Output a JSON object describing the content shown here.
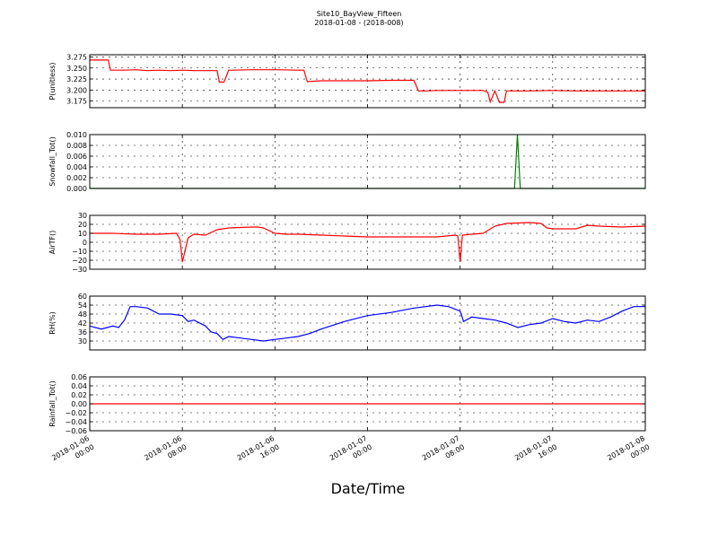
{
  "chart_data": {
    "type": "line",
    "title": "Site10_BayView_Fifteen",
    "subtitle": "2018-01-08 - (2018-008)",
    "xlabel": "Date/Time",
    "x_ticks": [
      {
        "value": 0,
        "label_line1": "2018-01-06",
        "label_line2": "00:00"
      },
      {
        "value": 8,
        "label_line1": "2018-01-06",
        "label_line2": "08:00"
      },
      {
        "value": 16,
        "label_line1": "2018-01-06",
        "label_line2": "16:00"
      },
      {
        "value": 24,
        "label_line1": "2018-01-07",
        "label_line2": "00:00"
      },
      {
        "value": 32,
        "label_line1": "2018-01-07",
        "label_line2": "08:00"
      },
      {
        "value": 40,
        "label_line1": "2018-01-07",
        "label_line2": "16:00"
      },
      {
        "value": 48,
        "label_line1": "2018-01-08",
        "label_line2": "00:00"
      }
    ],
    "xlim": [
      0,
      48
    ],
    "grid": true,
    "panels": [
      {
        "ylabel": "P(unitless)",
        "color": "#ff0000",
        "ylim": [
          3.16,
          3.28
        ],
        "yticks": [
          3.175,
          3.2,
          3.225,
          3.25,
          3.275
        ],
        "tick_labels": [
          "3.175",
          "3.200",
          "3.225",
          "3.250",
          "3.275"
        ],
        "x": [
          0,
          1.6,
          1.8,
          3,
          4,
          5,
          6,
          7,
          8,
          9,
          10,
          11,
          11.2,
          11.6,
          12,
          12.3,
          14,
          16,
          18,
          18.5,
          18.8,
          20,
          22,
          24,
          26,
          28,
          28.4,
          29,
          30,
          32,
          34,
          34.4,
          34.6,
          35,
          35.4,
          35.8,
          36,
          38,
          40,
          42,
          44,
          46,
          48
        ],
        "values": [
          3.268,
          3.268,
          3.245,
          3.245,
          3.246,
          3.244,
          3.245,
          3.244,
          3.245,
          3.244,
          3.244,
          3.244,
          3.218,
          3.218,
          3.245,
          3.245,
          3.246,
          3.246,
          3.245,
          3.245,
          3.219,
          3.221,
          3.221,
          3.221,
          3.222,
          3.222,
          3.198,
          3.198,
          3.199,
          3.199,
          3.199,
          3.195,
          3.173,
          3.198,
          3.172,
          3.172,
          3.198,
          3.198,
          3.199,
          3.198,
          3.198,
          3.198,
          3.198
        ]
      },
      {
        "ylabel": "Snowfall_Tot()",
        "color": "#008000",
        "ylim": [
          0,
          0.01
        ],
        "yticks": [
          0,
          0.002,
          0.004,
          0.006,
          0.008,
          0.01
        ],
        "tick_labels": [
          "0.000",
          "0.002",
          "0.004",
          "0.006",
          "0.008",
          "0.010"
        ],
        "x": [
          0,
          36.7,
          36.95,
          37.2,
          48
        ],
        "values": [
          0,
          0,
          0.01,
          0,
          0
        ]
      },
      {
        "ylabel": "AirTF()",
        "color": "#ff0000",
        "ylim": [
          -30,
          30
        ],
        "yticks": [
          -30,
          -20,
          -10,
          0,
          10,
          20,
          30
        ],
        "tick_labels": [
          "−30",
          "−20",
          "−10",
          "0",
          "10",
          "20",
          "30"
        ],
        "x": [
          0,
          2,
          4,
          6,
          7.5,
          7.8,
          8.0,
          8.5,
          9,
          10,
          11,
          12,
          14,
          14.5,
          15,
          16,
          17,
          18,
          20,
          22,
          24,
          26,
          28,
          30,
          31.6,
          31.8,
          32.0,
          32.2,
          33,
          34,
          35,
          36,
          38,
          39,
          39.5,
          40,
          42,
          43,
          44,
          46,
          48
        ],
        "values": [
          10,
          10,
          9,
          9,
          10,
          3,
          -22,
          5,
          9,
          8,
          14,
          16,
          17,
          17,
          16,
          10,
          9,
          9,
          8,
          7,
          6,
          6,
          6,
          6,
          8,
          7,
          -22,
          8,
          9,
          10,
          18,
          21,
          22,
          21,
          16,
          15,
          15,
          19,
          18,
          17,
          18
        ]
      },
      {
        "ylabel": "RH(%)",
        "color": "#0000ff",
        "ylim": [
          24,
          60
        ],
        "yticks": [
          30,
          36,
          42,
          48,
          54,
          60
        ],
        "tick_labels": [
          "30",
          "36",
          "42",
          "48",
          "54",
          "60"
        ],
        "x": [
          0,
          1,
          2,
          2.5,
          3,
          3.5,
          4,
          5,
          6,
          7,
          8,
          8.5,
          9,
          10,
          10.5,
          11,
          11.5,
          12,
          13,
          14,
          15,
          16,
          17,
          18,
          19,
          20,
          22,
          24,
          26,
          28,
          29,
          30,
          31,
          32,
          32.3,
          33,
          34,
          35,
          36,
          37,
          38,
          39,
          40,
          41,
          42,
          43,
          44,
          45,
          46,
          47,
          48
        ],
        "values": [
          40,
          38,
          40,
          39,
          44,
          53,
          53,
          52,
          48,
          48,
          47,
          43,
          44,
          40,
          36,
          35,
          31,
          33,
          32,
          31,
          30,
          31,
          32,
          33,
          35,
          38,
          43,
          47,
          49,
          52,
          53,
          54,
          53,
          50,
          43,
          46,
          45,
          44,
          42,
          39,
          41,
          42,
          45,
          43,
          42,
          44,
          43,
          46,
          50,
          53,
          53
        ]
      },
      {
        "ylabel": "Rainfall_Tot()",
        "color": "#ff0000",
        "ylim": [
          -0.06,
          0.06
        ],
        "yticks": [
          -0.06,
          -0.04,
          -0.02,
          0,
          0.02,
          0.04,
          0.06
        ],
        "tick_labels": [
          "−0.06",
          "−0.04",
          "−0.02",
          "0.00",
          "0.02",
          "0.04",
          "0.06"
        ],
        "x": [
          0,
          48
        ],
        "values": [
          0,
          0
        ]
      }
    ]
  }
}
